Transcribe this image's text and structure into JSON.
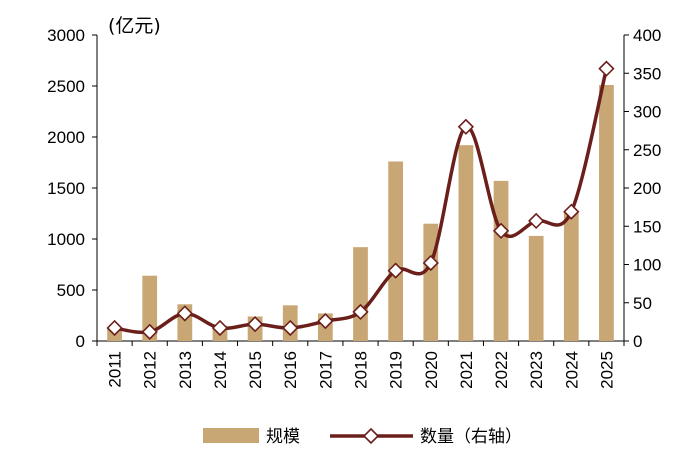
{
  "chart_data": {
    "type": "bar+line",
    "unit_label": "(亿元)",
    "categories": [
      "2011",
      "2012",
      "2013",
      "2014",
      "2015",
      "2016",
      "2017",
      "2018",
      "2019",
      "2020",
      "2021",
      "2022",
      "2023",
      "2024",
      "2025"
    ],
    "series": [
      {
        "name": "规模",
        "type": "bar",
        "axis": "left",
        "color": "#c9a775",
        "values": [
          120,
          640,
          360,
          150,
          240,
          350,
          270,
          920,
          1760,
          1150,
          1920,
          1570,
          1030,
          1270,
          2510
        ]
      },
      {
        "name": "数量（右轴）",
        "type": "line",
        "axis": "right",
        "color": "#6b1f1b",
        "marker": "diamond",
        "values": [
          17,
          12,
          36,
          17,
          22,
          17,
          26,
          38,
          92,
          102,
          280,
          144,
          157,
          169,
          356
        ]
      }
    ],
    "y_left": {
      "min": 0,
      "max": 3000,
      "ticks": [
        0,
        500,
        1000,
        1500,
        2000,
        2500,
        3000
      ]
    },
    "y_right": {
      "min": 0,
      "max": 400,
      "ticks": [
        0,
        50,
        100,
        150,
        200,
        250,
        300,
        350,
        400
      ]
    },
    "legend": [
      "规模",
      "数量（右轴）"
    ],
    "legend_position": "bottom"
  }
}
